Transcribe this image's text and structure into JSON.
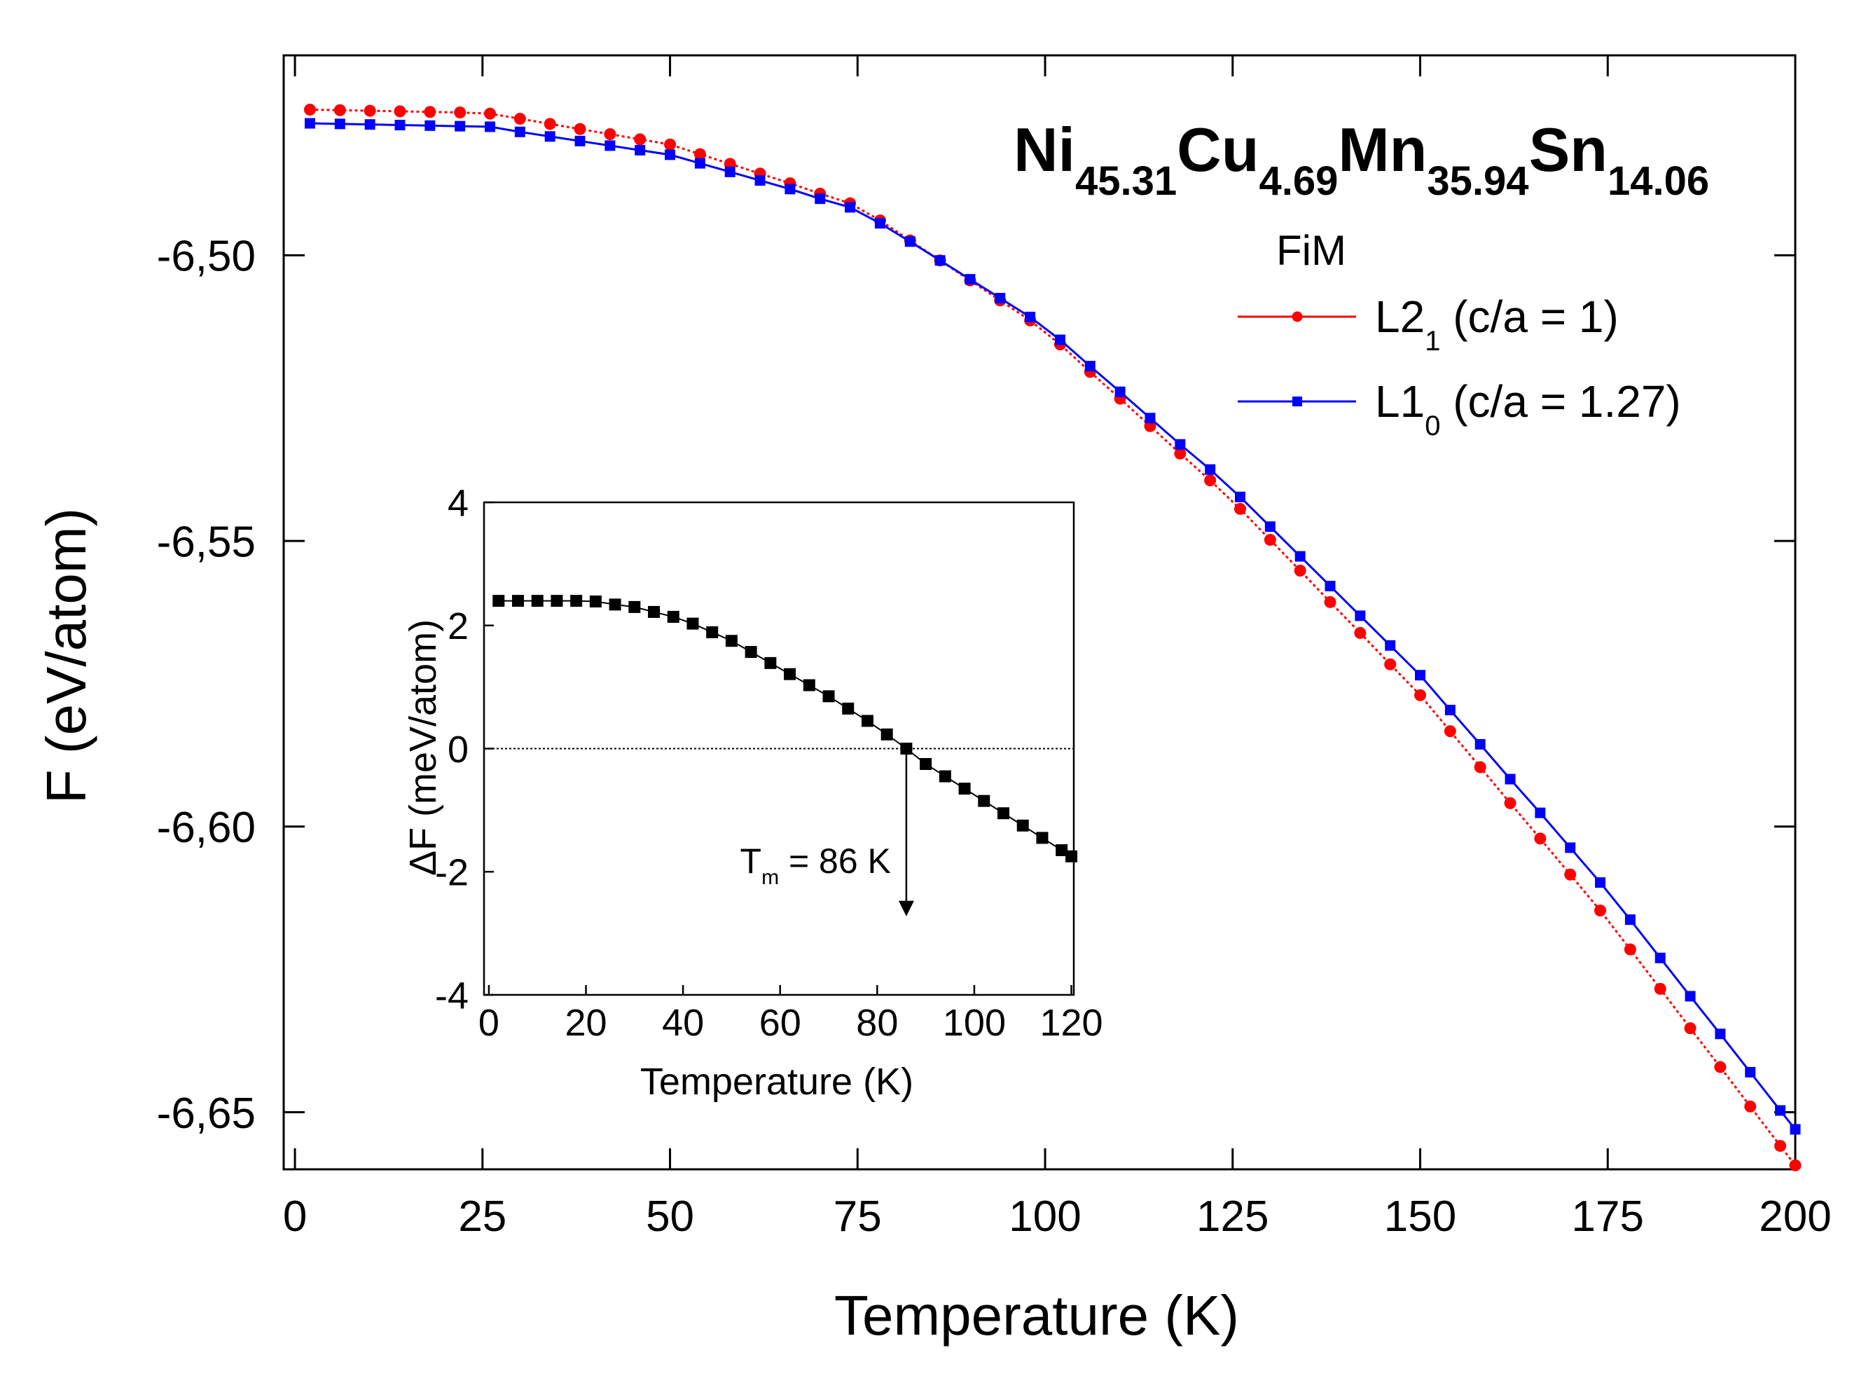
{
  "chart_data": {
    "type": "line",
    "title_parts": [
      {
        "text": "Ni",
        "sub": "45.31"
      },
      {
        "text": "Cu",
        "sub": "4.69"
      },
      {
        "text": "Mn",
        "sub": "35.94"
      },
      {
        "text": "Sn",
        "sub": "14.06"
      }
    ],
    "legend_title": "FiM",
    "xlabel": "Temperature (K)",
    "ylabel": "F (eV/atom)",
    "x": [
      2,
      6,
      10,
      14,
      18,
      22,
      26,
      30,
      34,
      38,
      42,
      46,
      50,
      54,
      58,
      62,
      66,
      70,
      74,
      78,
      82,
      86,
      90,
      94,
      98,
      102,
      106,
      110,
      114,
      118,
      122,
      126,
      130,
      134,
      138,
      142,
      146,
      150,
      154,
      158,
      162,
      166,
      170,
      174,
      178,
      182,
      186,
      190,
      194,
      198,
      200
    ],
    "series": [
      {
        "name": "L2",
        "name_sub": "1",
        "name_rest": " (c/a = 1)",
        "color": "#ff0000",
        "marker": "circle",
        "line": "dotted",
        "values": [
          -6.4745,
          -6.4746,
          -6.4747,
          -6.4748,
          -6.4749,
          -6.475,
          -6.4752,
          -6.4761,
          -6.477,
          -6.4779,
          -6.4788,
          -6.4797,
          -6.4806,
          -6.4823,
          -6.484,
          -6.4857,
          -6.4874,
          -6.4892,
          -6.4909,
          -6.4939,
          -6.4974,
          -6.5009,
          -6.5044,
          -6.5079,
          -6.5114,
          -6.5156,
          -6.5204,
          -6.5251,
          -6.5299,
          -6.5347,
          -6.5394,
          -6.5444,
          -6.5498,
          -6.5552,
          -6.5607,
          -6.5661,
          -6.5716,
          -6.577,
          -6.5833,
          -6.5896,
          -6.5959,
          -6.6021,
          -6.6084,
          -6.6147,
          -6.6215,
          -6.6284,
          -6.6353,
          -6.6421,
          -6.649,
          -6.6559,
          -6.6593
        ]
      },
      {
        "name": "L1",
        "name_sub": "0",
        "name_rest": " (c/a = 1.27)",
        "color": "#0000ff",
        "marker": "square",
        "line": "solid",
        "values": [
          -6.4769,
          -6.477,
          -6.4771,
          -6.4772,
          -6.4773,
          -6.4774,
          -6.4775,
          -6.4784,
          -6.4792,
          -6.48,
          -6.4808,
          -6.4816,
          -6.4824,
          -6.4839,
          -6.4854,
          -6.4869,
          -6.4884,
          -6.4901,
          -6.4916,
          -6.4944,
          -6.4976,
          -6.5009,
          -6.5042,
          -6.5075,
          -6.5108,
          -6.5148,
          -6.5194,
          -6.5239,
          -6.5285,
          -6.5331,
          -6.5375,
          -6.5423,
          -6.5475,
          -6.5527,
          -6.5579,
          -6.5631,
          -6.5683,
          -6.5735,
          -6.5796,
          -6.5856,
          -6.5917,
          -6.5976,
          -6.6037,
          -6.6098,
          -6.6163,
          -6.623,
          -6.6297,
          -6.6363,
          -6.643,
          -6.6497,
          -6.653
        ]
      }
    ],
    "xlim": [
      -1.5,
      200
    ],
    "ylim": [
      -6.66,
      -6.465
    ],
    "xticks": [
      0,
      25,
      50,
      75,
      100,
      125,
      150,
      175,
      200
    ],
    "yticks": [
      {
        "value": -6.5,
        "label": "-6,50"
      },
      {
        "value": -6.55,
        "label": "-6,55"
      },
      {
        "value": -6.6,
        "label": "-6,60"
      },
      {
        "value": -6.65,
        "label": "-6,65"
      }
    ],
    "legend_position": "upper right",
    "inset": {
      "type": "line",
      "xlabel": "Temperature (K)",
      "ylabel": "ΔF (meV/atom)",
      "x": [
        2,
        6,
        10,
        14,
        18,
        22,
        26,
        30,
        34,
        38,
        42,
        46,
        50,
        54,
        58,
        62,
        66,
        70,
        74,
        78,
        82,
        86,
        90,
        94,
        98,
        102,
        106,
        110,
        114,
        118,
        120
      ],
      "values": [
        2.4,
        2.4,
        2.4,
        2.4,
        2.4,
        2.39,
        2.34,
        2.3,
        2.22,
        2.14,
        2.03,
        1.89,
        1.75,
        1.57,
        1.39,
        1.21,
        1.03,
        0.85,
        0.65,
        0.45,
        0.23,
        0,
        -0.25,
        -0.45,
        -0.65,
        -0.85,
        -1.05,
        -1.25,
        -1.45,
        -1.65,
        -1.75
      ],
      "color": "#000000",
      "marker": "square",
      "xlim": [
        -1,
        120.5
      ],
      "ylim": [
        -4,
        4
      ],
      "xticks": [
        0,
        20,
        40,
        60,
        80,
        100,
        120
      ],
      "yticks": [
        -4,
        -2,
        0,
        2,
        4
      ],
      "annotation": {
        "text": "T",
        "sub": "m",
        "rest": " = 86 K",
        "x": 86,
        "y": -2.7
      }
    }
  }
}
